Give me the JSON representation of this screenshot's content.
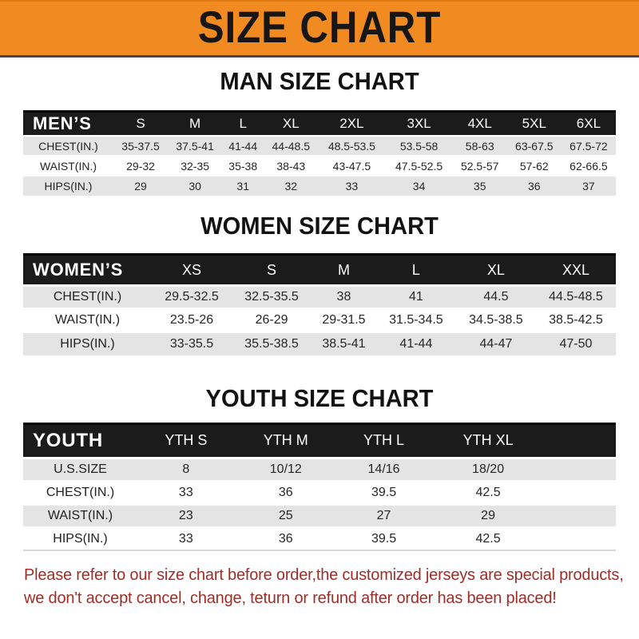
{
  "banner": {
    "title": "SIZE CHART",
    "background_color": "#F18A21",
    "text_color": "#161616"
  },
  "sections": [
    {
      "heading": "MAN SIZE CHART",
      "header_label": "MEN’S",
      "columns": [
        "S",
        "M",
        "L",
        "XL",
        "2XL",
        "3XL",
        "4XL",
        "5XL",
        "6XL"
      ],
      "rows": [
        {
          "label": "CHEST(IN.)",
          "values": [
            "35-37.5",
            "37.5-41",
            "41-44",
            "44-48.5",
            "48.5-53.5",
            "53.5-58",
            "58-63",
            "63-67.5",
            "67.5-72"
          ]
        },
        {
          "label": "WAIST(IN.)",
          "values": [
            "29-32",
            "32-35",
            "35-38",
            "38-43",
            "43-47.5",
            "47.5-52.5",
            "52.5-57",
            "57-62",
            "62-66.5"
          ]
        },
        {
          "label": "HIPS(IN.)",
          "values": [
            "29",
            "30",
            "31",
            "32",
            "33",
            "34",
            "35",
            "36",
            "37"
          ]
        }
      ]
    },
    {
      "heading": "WOMEN SIZE CHART",
      "header_label": "WOMEN’S",
      "columns": [
        "XS",
        "S",
        "M",
        "L",
        "XL",
        "XXL"
      ],
      "rows": [
        {
          "label": "CHEST(IN.)",
          "values": [
            "29.5-32.5",
            "32.5-35.5",
            "38",
            "41",
            "44.5",
            "44.5-48.5"
          ]
        },
        {
          "label": "WAIST(IN.)",
          "values": [
            "23.5-26",
            "26-29",
            "29-31.5",
            "31.5-34.5",
            "34.5-38.5",
            "38.5-42.5"
          ]
        },
        {
          "label": "HIPS(IN.)",
          "values": [
            "33-35.5",
            "35.5-38.5",
            "38.5-41",
            "41-44",
            "44-47",
            "47-50"
          ]
        }
      ]
    },
    {
      "heading": "YOUTH SIZE CHART",
      "header_label": "YOUTH",
      "columns": [
        "YTH S",
        "YTH M",
        "YTH L",
        "YTH XL"
      ],
      "rows": [
        {
          "label": "U.S.SIZE",
          "values": [
            "8",
            "10/12",
            "14/16",
            "18/20"
          ]
        },
        {
          "label": "CHEST(IN.)",
          "values": [
            "33",
            "36",
            "39.5",
            "42.5"
          ]
        },
        {
          "label": "WAIST(IN.)",
          "values": [
            "23",
            "25",
            "27",
            "29"
          ]
        },
        {
          "label": "HIPS(IN.)",
          "values": [
            "33",
            "36",
            "39.5",
            "42.5"
          ]
        }
      ]
    }
  ],
  "footer": {
    "line1": "Please refer to our size chart before order,the customized jerseys are special products,",
    "line2": "we don't accept cancel, change, teturn or refund after order has been placed!",
    "text_color": "#9F2D27"
  }
}
